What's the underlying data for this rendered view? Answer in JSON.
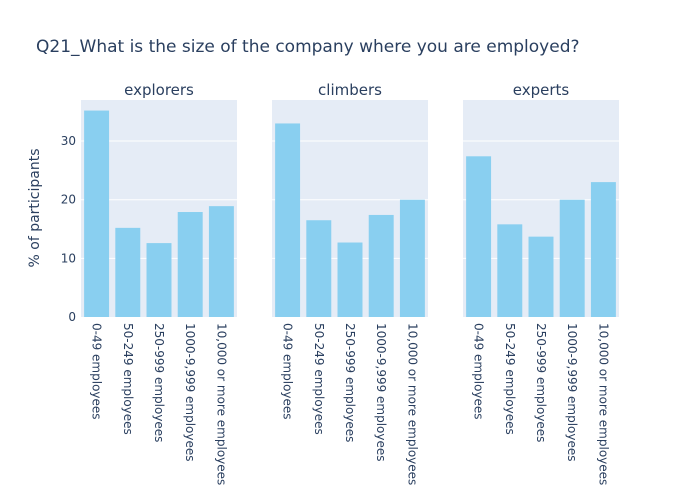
{
  "chart_data": {
    "type": "bar",
    "title": "Q21_What is the size of the company where you are employed?",
    "ylabel": "% of participants",
    "xlabel": "",
    "ylim": [
      0,
      37
    ],
    "yticks": [
      0,
      10,
      20,
      30
    ],
    "grid": true,
    "categories": [
      "0-49 employees",
      "50-249 employees",
      "250-999 employees",
      "1000-9,999 employees",
      "10,000 or more employees"
    ],
    "bar_color": "#89cff0",
    "plot_background": "#e5ecf6",
    "panels": [
      {
        "name": "explorers",
        "values": [
          35.2,
          15.2,
          12.6,
          17.9,
          18.9
        ]
      },
      {
        "name": "climbers",
        "values": [
          33.0,
          16.5,
          12.7,
          17.4,
          20.0
        ]
      },
      {
        "name": "experts",
        "values": [
          27.4,
          15.8,
          13.7,
          20.0,
          23.0
        ]
      }
    ]
  }
}
